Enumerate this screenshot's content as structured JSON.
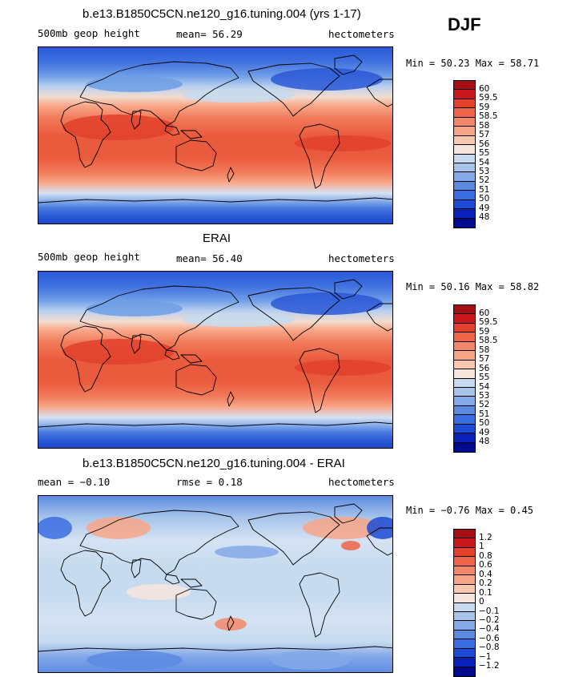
{
  "season": "DJF",
  "panels": [
    {
      "title": "b.e13.B1850C5CN.ne120_g16.tuning.004 (yrs 1-17)",
      "left": "500mb geop height",
      "middle": "mean=  56.29",
      "right": "hectometers",
      "minmax": "Min =  50.23 Max =  58.71",
      "colorbar": {
        "labels": [
          "60",
          "59.5",
          "59",
          "58.5",
          "58",
          "57",
          "56",
          "55",
          "54",
          "53",
          "52",
          "51",
          "50",
          "49",
          "48"
        ],
        "colors": [
          "#a50f15",
          "#cb181d",
          "#e2412c",
          "#ef6548",
          "#f4876a",
          "#f8a688",
          "#fcc8b0",
          "#f6e5dc",
          "#c6dbef",
          "#a6c4ea",
          "#84a8e8",
          "#5c8ae3",
          "#3a6ee0",
          "#1c4bd4",
          "#0a22b8",
          "#000a8c"
        ]
      },
      "map_type": "height"
    },
    {
      "title": "ERAI",
      "left": "500mb geop height",
      "middle": "mean=  56.40",
      "right": "hectometers",
      "minmax": "Min =  50.16 Max =  58.82",
      "colorbar": {
        "labels": [
          "60",
          "59.5",
          "59",
          "58.5",
          "58",
          "57",
          "56",
          "55",
          "54",
          "53",
          "52",
          "51",
          "50",
          "49",
          "48"
        ],
        "colors": [
          "#a50f15",
          "#cb181d",
          "#e2412c",
          "#ef6548",
          "#f4876a",
          "#f8a688",
          "#fcc8b0",
          "#f6e5dc",
          "#c6dbef",
          "#a6c4ea",
          "#84a8e8",
          "#5c8ae3",
          "#3a6ee0",
          "#1c4bd4",
          "#0a22b8",
          "#000a8c"
        ]
      },
      "map_type": "height"
    },
    {
      "title": "b.e13.B1850C5CN.ne120_g16.tuning.004 - ERAI",
      "left": "mean =  −0.10",
      "middle": "rmse =   0.18",
      "right": "hectometers",
      "minmax": "Min =  −0.76 Max =   0.45",
      "colorbar": {
        "labels": [
          "1.2",
          "1",
          "0.8",
          "0.6",
          "0.4",
          "0.2",
          "0.1",
          "0",
          "−0.1",
          "−0.2",
          "−0.4",
          "−0.6",
          "−0.8",
          "−1",
          "−1.2"
        ],
        "colors": [
          "#a50f15",
          "#cb181d",
          "#e2412c",
          "#ef6548",
          "#f4876a",
          "#f8a688",
          "#fcc8b0",
          "#f6e5dc",
          "#c6dbef",
          "#a6c4ea",
          "#84a8e8",
          "#5c8ae3",
          "#3a6ee0",
          "#1c4bd4",
          "#0a22b8",
          "#000a8c"
        ]
      },
      "map_type": "diff"
    }
  ]
}
